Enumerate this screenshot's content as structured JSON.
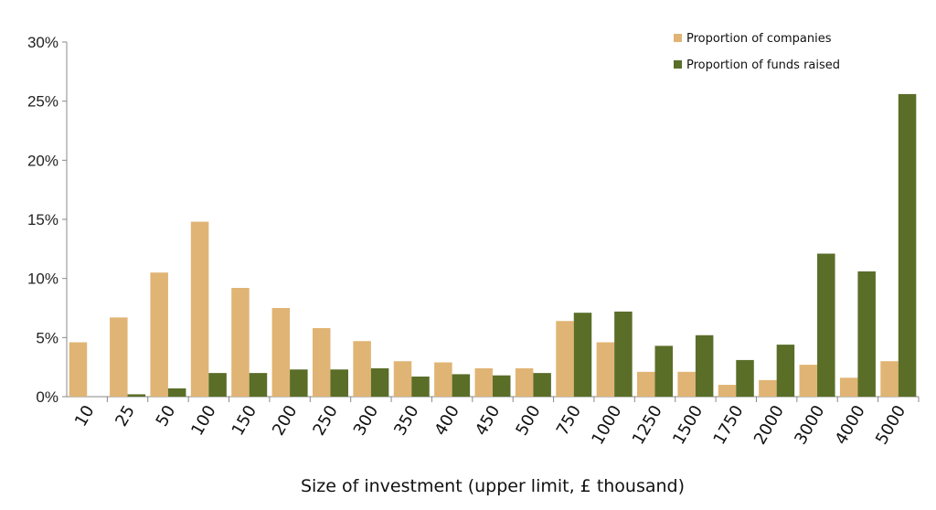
{
  "chart_data": {
    "type": "bar",
    "title": "",
    "xlabel": "Size of investment (upper limit, £ thousand)",
    "ylabel": "",
    "ylim": [
      0,
      0.3
    ],
    "yticks": [
      "0%",
      "5%",
      "10%",
      "15%",
      "20%",
      "25%",
      "30%"
    ],
    "categories": [
      "10",
      "25",
      "50",
      "100",
      "150",
      "200",
      "250",
      "300",
      "350",
      "400",
      "450",
      "500",
      "750",
      "1000",
      "1250",
      "1500",
      "1750",
      "2000",
      "3000",
      "4000",
      "5000"
    ],
    "series": [
      {
        "name": "Proportion of companies",
        "color": "#e0b474",
        "values": [
          0.046,
          0.067,
          0.105,
          0.148,
          0.092,
          0.075,
          0.058,
          0.047,
          0.03,
          0.029,
          0.024,
          0.024,
          0.064,
          0.046,
          0.021,
          0.021,
          0.01,
          0.014,
          0.027,
          0.016,
          0.03
        ]
      },
      {
        "name": "Proportion of funds raised",
        "color": "#5a6e28",
        "values": [
          0.0,
          0.002,
          0.007,
          0.02,
          0.02,
          0.023,
          0.023,
          0.024,
          0.017,
          0.019,
          0.018,
          0.02,
          0.071,
          0.072,
          0.043,
          0.052,
          0.031,
          0.044,
          0.121,
          0.106,
          0.256
        ]
      }
    ],
    "grid": false,
    "legend": "top-right"
  }
}
